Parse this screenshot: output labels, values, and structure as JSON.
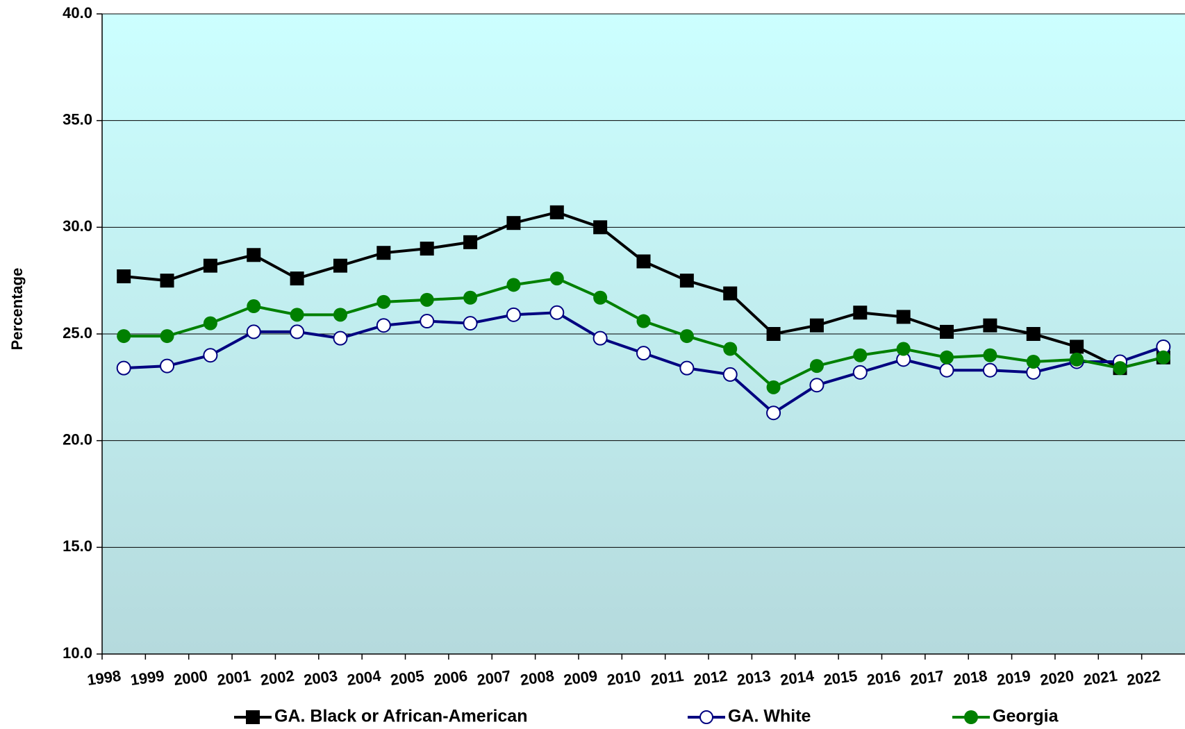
{
  "chart_data": {
    "type": "line",
    "y_label": "Percentage",
    "categories": [
      "1998",
      "1999",
      "2000",
      "2001",
      "2002",
      "2003",
      "2004",
      "2005",
      "2006",
      "2007",
      "2008",
      "2009",
      "2010",
      "2011",
      "2012",
      "2013",
      "2014",
      "2015",
      "2016",
      "2017",
      "2018",
      "2019",
      "2020",
      "2021",
      "2022"
    ],
    "series": [
      {
        "name": "GA. Black or African-American",
        "color": "#000000",
        "marker": "square",
        "values": [
          27.7,
          27.5,
          28.2,
          28.7,
          27.6,
          28.2,
          28.8,
          29.0,
          29.3,
          30.2,
          30.7,
          30.0,
          28.4,
          27.5,
          26.9,
          25.0,
          25.4,
          26.0,
          25.8,
          25.1,
          25.4,
          25.0,
          24.4,
          23.4,
          23.9
        ]
      },
      {
        "name": "GA. White",
        "color": "#000080",
        "marker": "open-circle",
        "values": [
          23.4,
          23.5,
          24.0,
          25.1,
          25.1,
          24.8,
          25.4,
          25.6,
          25.5,
          25.9,
          26.0,
          24.8,
          24.1,
          23.4,
          23.1,
          21.3,
          22.6,
          23.2,
          23.8,
          23.3,
          23.3,
          23.2,
          23.7,
          23.7,
          24.4
        ]
      },
      {
        "name": "Georgia",
        "color": "#008000",
        "marker": "circle",
        "values": [
          24.9,
          24.9,
          25.5,
          26.3,
          25.9,
          25.9,
          26.5,
          26.6,
          26.7,
          27.3,
          27.6,
          26.7,
          25.6,
          24.9,
          24.3,
          22.5,
          23.5,
          24.0,
          24.3,
          23.9,
          24.0,
          23.7,
          23.8,
          23.4,
          23.9
        ]
      }
    ],
    "ylim": [
      10,
      40
    ],
    "yticks": [
      {
        "value": 10,
        "label": "10.0"
      },
      {
        "value": 15,
        "label": "15.0"
      },
      {
        "value": 20,
        "label": "20.0"
      },
      {
        "value": 25,
        "label": "25.0"
      },
      {
        "value": 30,
        "label": "30.0"
      },
      {
        "value": 35,
        "label": "35.0"
      },
      {
        "value": 40,
        "label": "40.0"
      }
    ],
    "grid": true
  }
}
